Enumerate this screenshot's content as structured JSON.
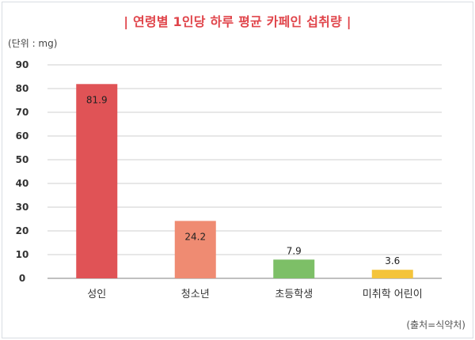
{
  "chart_data": {
    "type": "bar",
    "title": "| 연령별 1인당 하루 평균 카페인 섭취량 |",
    "unit_label": "(단위 : mg)",
    "source": "(출처=식약처)",
    "categories": [
      "성인",
      "청소년",
      "초등학생",
      "미취학 어린이"
    ],
    "values": [
      81.9,
      24.2,
      7.9,
      3.6
    ],
    "value_labels": [
      "81.9",
      "24.2",
      "7.9",
      "3.6"
    ],
    "bar_colors": [
      "#e05356",
      "#ef8b72",
      "#7dbf67",
      "#f4c43b"
    ],
    "ylim": [
      0,
      90
    ],
    "yticks": [
      0,
      10,
      20,
      30,
      40,
      50,
      60,
      70,
      80,
      90
    ],
    "grid": true,
    "xlabel": "",
    "ylabel": ""
  }
}
